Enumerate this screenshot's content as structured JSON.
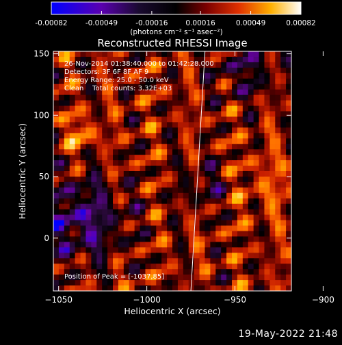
{
  "colorbar": {
    "tick_labels": [
      "-0.00082",
      "-0.00049",
      "-0.00016",
      "0.00016",
      "0.00049",
      "0.00082"
    ],
    "units_label": "(photons cm⁻² s⁻¹ asec⁻²)"
  },
  "chart_data": {
    "type": "heatmap",
    "title": "Reconstructed RHESSI Image",
    "xlabel": "Heliocentric X (arcsec)",
    "ylabel": "Heliocentric Y (arcsec)",
    "xlim": [
      -1053,
      -918
    ],
    "ylim": [
      -43,
      152
    ],
    "x_ticks": [
      -1050,
      -1000,
      -950,
      -900
    ],
    "x_tick_labels": [
      "−1050",
      "−1000",
      "−950",
      "−900"
    ],
    "y_ticks": [
      0,
      50,
      100,
      150
    ],
    "y_tick_labels": [
      "0",
      "50",
      "100",
      "150"
    ],
    "colorscale": [
      "#0000ff",
      "#6a00a8",
      "#2a0a3a",
      "#000000",
      "#5a0000",
      "#c81e00",
      "#ff6a00",
      "#ffc000",
      "#ffffff"
    ],
    "value_range": [
      -0.00082,
      0.00082
    ],
    "limb_line": [
      [
        -975,
        -43
      ],
      [
        -967,
        152
      ]
    ],
    "annotations": [
      "26-Nov-2014 01:38:40.000 to 01:42:28.000",
      "Detectors: 3F 6F 8F AF 9",
      "Energy Range: 25.0 - 50.0 keV",
      "Clean    Total counts: 3.32E+03"
    ],
    "peak_label": "Position of Peak = [-1037,85]"
  },
  "footer": {
    "timestamp": "19-May-2022 21:48"
  }
}
